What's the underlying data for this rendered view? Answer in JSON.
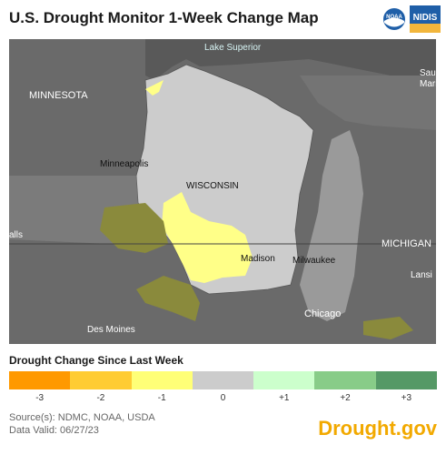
{
  "title": "U.S. Drought Monitor 1-Week Change Map",
  "logos": {
    "noaa_label": "NOAA",
    "nidis_label": "NIDIS"
  },
  "map": {
    "labels": {
      "lake": "Lake Superior",
      "minnesota": "MINNESOTA",
      "minneapolis": "Minneapolis",
      "wisconsin": "WISCONSIN",
      "madison": "Madison",
      "milwaukee": "Milwaukee",
      "chicago": "Chicago",
      "michigan": "MICHIGAN",
      "des_moines": "Des Moines",
      "falls": "alls",
      "sault": "Sau",
      "marie": "Marie",
      "lansing": "Lansi"
    },
    "colors": {
      "background": "#6b6b6b",
      "no_change": "#cccccc",
      "one_class_degradation": "#ffff88",
      "one_class_deg_outside": "#8a8a3c",
      "water": "#9a9a9a"
    }
  },
  "legend": {
    "title": "Drought Change Since Last Week",
    "items": [
      {
        "label": "-3",
        "color": "#ff9900"
      },
      {
        "label": "-2",
        "color": "#ffcc33"
      },
      {
        "label": "-1",
        "color": "#ffff77"
      },
      {
        "label": "0",
        "color": "#cccccc"
      },
      {
        "label": "+1",
        "color": "#ccffcc"
      },
      {
        "label": "+2",
        "color": "#88cc88"
      },
      {
        "label": "+3",
        "color": "#559966"
      }
    ]
  },
  "source": {
    "line1": "Source(s): NDMC, NOAA, USDA",
    "line2": "Data Valid: 06/27/23"
  },
  "brand": "Drought.gov"
}
